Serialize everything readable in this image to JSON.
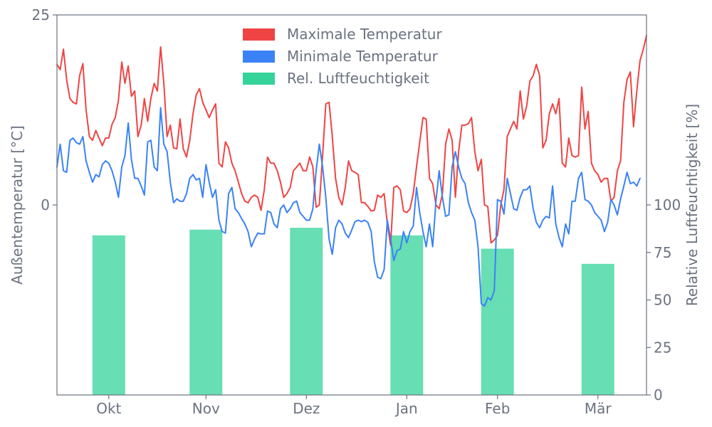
{
  "colors": {
    "max_temp": "#ef4444",
    "min_temp": "#3b82f6",
    "humidity": "#34d399",
    "axis": "#6b7280"
  },
  "chart_data": {
    "type": "line+bar",
    "title": "",
    "xlabel": "",
    "ylabel_left": "Außentemperatur [°C]",
    "ylabel_right": "Relative Luftfeuchtigkeit [%]",
    "ylim_left": [
      -25,
      25
    ],
    "ylim_right": [
      0,
      200
    ],
    "yticks_left": [
      "25",
      "0"
    ],
    "yticks_right": [
      "0",
      "25",
      "50",
      "75",
      "100"
    ],
    "xlim": [
      0,
      182
    ],
    "xticks": [
      {
        "label": "Okt",
        "x": 16
      },
      {
        "label": "Nov",
        "x": 46
      },
      {
        "label": "Dez",
        "x": 77
      },
      {
        "label": "Jan",
        "x": 108
      },
      {
        "label": "Feb",
        "x": 136
      },
      {
        "label": "Mär",
        "x": 167
      }
    ],
    "legend_placement": "top-center",
    "grid": false,
    "series": [
      {
        "name": "Maximale Temperatur",
        "type": "line",
        "values": [
          18.5,
          17.8,
          20.5,
          16.5,
          14.0,
          13.5,
          13.3,
          17.0,
          18.6,
          12.5,
          9.0,
          8.5,
          9.8,
          8.8,
          7.8,
          8.8,
          8.8,
          10.6,
          11.5,
          13.8,
          18.8,
          16.0,
          18.3,
          14.3,
          15.0,
          9.0,
          10.5,
          14.0,
          11.0,
          14.0,
          16.0,
          15.0,
          20.8,
          16.0,
          9.0,
          10.5,
          7.5,
          7.4,
          11.3,
          7.4,
          6.3,
          8.5,
          12.0,
          14.5,
          15.3,
          13.5,
          12.5,
          11.5,
          12.5,
          13.3,
          5.5,
          5.0,
          8.3,
          7.5,
          5.5,
          4.5,
          3.0,
          1.5,
          0.5,
          0.3,
          1.0,
          1.3,
          1.0,
          -0.7,
          2.0,
          6.3,
          5.5,
          5.5,
          4.5,
          3.0,
          1.0,
          1.5,
          2.3,
          4.5,
          5.0,
          5.5,
          4.5,
          4.5,
          6.3,
          5.0,
          -0.3,
          0.0,
          6.5,
          13.3,
          13.5,
          9.0,
          3.5,
          1.0,
          0.0,
          2.3,
          5.8,
          4.5,
          4.3,
          4.0,
          0.3,
          0.3,
          -0.2,
          -0.8,
          -0.7,
          1.3,
          1.0,
          1.5,
          -2.5,
          -5.3,
          2.3,
          2.5,
          2.0,
          -0.8,
          -1.0,
          -0.5,
          1.5,
          5.0,
          8.3,
          11.5,
          11.3,
          3.5,
          2.8,
          0.0,
          -0.5,
          1.5,
          8.0,
          10.0,
          8.5,
          1.0,
          7.0,
          10.5,
          10.5,
          10.7,
          11.5,
          7.0,
          4.5,
          6.0,
          0.0,
          -0.2,
          -5.0,
          -4.6,
          -4.0,
          0.0,
          2.0,
          9.0,
          10.0,
          11.0,
          10.0,
          15.0,
          11.3,
          13.0,
          16.3,
          17.0,
          18.5,
          17.0,
          7.5,
          8.5,
          12.0,
          13.3,
          12.0,
          14.0,
          5.5,
          5.0,
          8.8,
          6.5,
          6.3,
          6.5,
          15.5,
          10.0,
          12.3,
          5.5,
          4.5,
          4.0,
          3.0,
          3.5,
          3.5,
          0.5,
          1.0,
          4.5,
          5.8,
          13.5,
          16.5,
          17.5,
          10.3,
          15.0,
          19.0,
          20.5,
          22.3
        ]
      },
      {
        "name": "Minimale Temperatur",
        "type": "line",
        "values": [
          5.0,
          8.0,
          4.5,
          4.3,
          8.5,
          8.8,
          8.2,
          8.0,
          9.0,
          5.8,
          4.3,
          3.0,
          4.0,
          3.7,
          5.3,
          5.8,
          5.5,
          4.5,
          3.0,
          1.0,
          5.0,
          6.5,
          10.8,
          6.0,
          3.5,
          3.5,
          2.5,
          1.3,
          8.3,
          8.5,
          5.0,
          4.5,
          12.8,
          8.0,
          7.0,
          3.0,
          0.3,
          0.8,
          0.5,
          0.5,
          1.5,
          3.5,
          4.0,
          3.3,
          3.5,
          1.0,
          5.3,
          3.0,
          1.0,
          2.0,
          -2.0,
          -3.5,
          -3.7,
          1.5,
          2.3,
          -0.5,
          -1.0,
          -1.8,
          -2.5,
          -3.5,
          -5.5,
          -4.5,
          -3.7,
          -3.8,
          -3.8,
          -0.8,
          -1.0,
          -2.5,
          -3.0,
          -0.5,
          0.0,
          -1.0,
          -0.5,
          0.3,
          0.5,
          -1.0,
          -1.5,
          -2.0,
          -2.0,
          -0.5,
          4.5,
          8.0,
          5.0,
          1.0,
          -4.5,
          -6.5,
          -3.0,
          -2.0,
          -2.5,
          -3.7,
          -4.3,
          -3.3,
          -2.2,
          -2.0,
          -2.2,
          -2.0,
          -2.3,
          -3.5,
          -7.5,
          -9.5,
          -9.7,
          -8.5,
          -2.0,
          -4.5,
          -7.3,
          -6.0,
          -5.8,
          -3.5,
          -5.0,
          -3.5,
          -2.8,
          2.3,
          -1.0,
          -3.5,
          -5.5,
          -2.5,
          -5.5,
          0.5,
          4.5,
          1.0,
          -1.5,
          -1.3,
          5.0,
          7.0,
          5.0,
          3.5,
          2.8,
          0.3,
          -1.0,
          -2.0,
          -5.5,
          -13.0,
          -13.3,
          -12.2,
          -12.5,
          -11.3,
          0.7,
          0.5,
          -1.2,
          3.5,
          1.5,
          -0.5,
          -0.7,
          1.0,
          2.0,
          2.0,
          2.5,
          -0.5,
          -2.3,
          -3.0,
          -2.0,
          -1.5,
          -1.7,
          2.5,
          -2.5,
          -4.3,
          -5.5,
          -2.5,
          -3.8,
          0.5,
          0.5,
          3.5,
          4.3,
          0.7,
          0.5,
          0.0,
          -1.0,
          -1.5,
          -2.0,
          -3.5,
          -2.3,
          0.7,
          0.0,
          -1.3,
          0.8,
          2.5,
          4.3,
          2.8,
          3.0,
          2.5,
          3.5
        ]
      },
      {
        "name": "Rel. Luftfeuchtigkeit",
        "type": "bar",
        "axis": "right",
        "x": [
          16,
          46,
          77,
          108,
          136,
          167
        ],
        "values": [
          84,
          87,
          88,
          84,
          77,
          69
        ]
      }
    ]
  }
}
